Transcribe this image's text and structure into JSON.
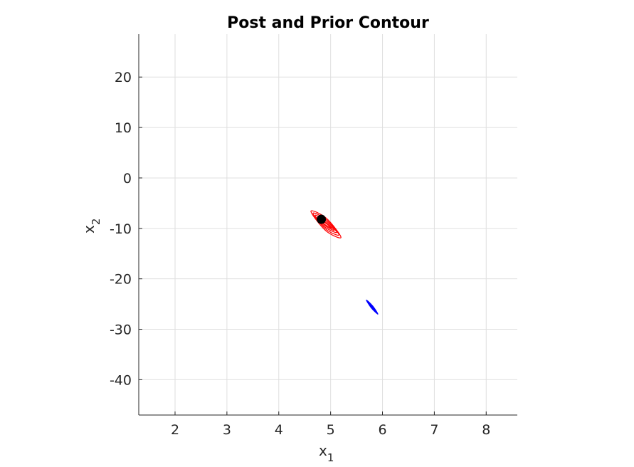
{
  "chart_data": {
    "type": "scatter",
    "title": "Post and Prior Contour",
    "xlabel": "x",
    "xlabel_subscript": "1",
    "ylabel": "x",
    "ylabel_subscript": "2",
    "xlim": [
      1.3,
      8.6
    ],
    "ylim": [
      -47,
      28.5
    ],
    "xticks": [
      2,
      3,
      4,
      5,
      6,
      7,
      8
    ],
    "yticks": [
      20,
      10,
      0,
      -10,
      -20,
      -30,
      -40
    ],
    "xtick_labels": [
      "2",
      "3",
      "4",
      "5",
      "6",
      "7",
      "8"
    ],
    "ytick_labels": [
      "20",
      "10",
      "0",
      "-10",
      "-20",
      "-30",
      "-40"
    ],
    "grid": true,
    "series": [
      {
        "kind": "contour",
        "color": "#ff0000",
        "center": [
          4.9,
          -9.2
        ],
        "rings": [
          {
            "x": [
              4.62,
              4.92,
              5.2,
              4.9
            ],
            "y": [
              -6.6,
              -8.0,
              -11.8,
              -10.4
            ]
          },
          {
            "x": [
              4.66,
              4.92,
              5.16,
              4.9
            ],
            "y": [
              -7.0,
              -8.3,
              -11.3,
              -10.1
            ]
          },
          {
            "x": [
              4.7,
              4.92,
              5.12,
              4.9
            ],
            "y": [
              -7.4,
              -8.6,
              -10.8,
              -9.8
            ]
          },
          {
            "x": [
              4.75,
              4.92,
              5.07,
              4.9
            ],
            "y": [
              -7.9,
              -8.9,
              -10.4,
              -9.5
            ]
          },
          {
            "x": [
              4.8,
              4.92,
              5.02,
              4.9
            ],
            "y": [
              -8.4,
              -9.1,
              -10.0,
              -9.3
            ]
          }
        ]
      },
      {
        "kind": "contour",
        "color": "#0000ff",
        "center": [
          5.8,
          -25.6
        ],
        "rings": [
          {
            "x": [
              5.69,
              5.82,
              5.91,
              5.78
            ],
            "y": [
              -24.2,
              -25.5,
              -27.0,
              -25.7
            ]
          },
          {
            "x": [
              5.73,
              5.82,
              5.87,
              5.78
            ],
            "y": [
              -24.7,
              -25.55,
              -26.5,
              -25.65
            ]
          }
        ]
      },
      {
        "kind": "point",
        "color": "#000000",
        "x": [
          4.82
        ],
        "y": [
          -8.2
        ]
      }
    ]
  }
}
